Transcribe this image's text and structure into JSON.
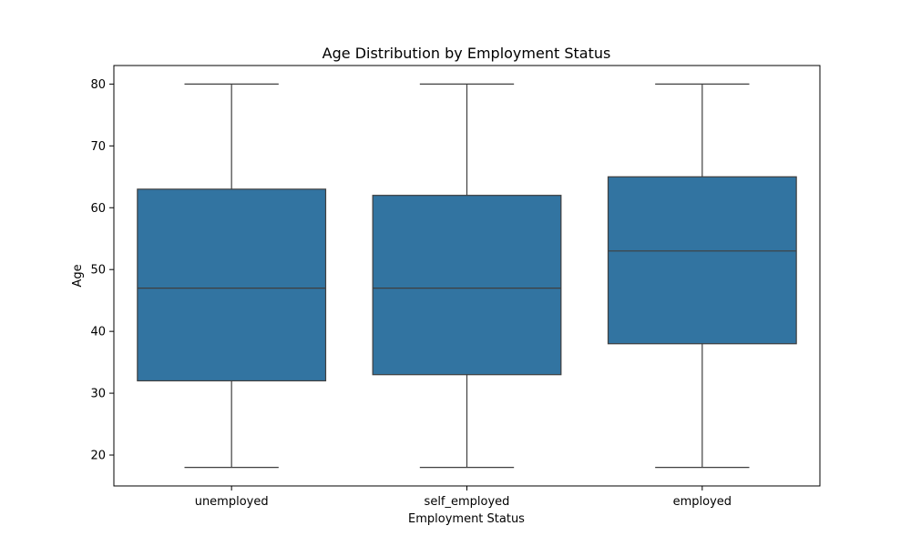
{
  "chart_data": {
    "type": "box",
    "title": "Age Distribution by Employment Status",
    "xlabel": "Employment Status",
    "ylabel": "Age",
    "ylim": [
      15,
      83
    ],
    "yticks": [
      20,
      30,
      40,
      50,
      60,
      70,
      80
    ],
    "categories": [
      "unemployed",
      "self_employed",
      "employed"
    ],
    "boxes": [
      {
        "category": "unemployed",
        "min": 18,
        "q1": 32,
        "median": 47,
        "q3": 63,
        "max": 80
      },
      {
        "category": "self_employed",
        "min": 18,
        "q1": 33,
        "median": 47,
        "q3": 62,
        "max": 80
      },
      {
        "category": "employed",
        "min": 18,
        "q1": 38,
        "median": 53,
        "q3": 65,
        "max": 80
      }
    ],
    "box_color": "#3274a1",
    "line_color": "#3f3f3f",
    "grid": false,
    "legend": "none"
  }
}
